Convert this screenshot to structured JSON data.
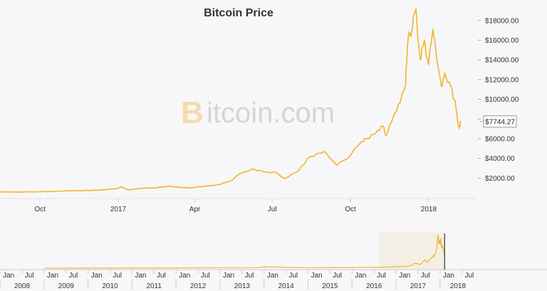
{
  "chart_data": {
    "type": "line",
    "title": "Bitcoin Price",
    "watermark": {
      "prefix": "B",
      "rest": "itcoin.com"
    },
    "series": [
      {
        "color": "#f2b52c",
        "x": [
          "2016-08-15",
          "2016-09-01",
          "2016-09-15",
          "2016-10-01",
          "2016-10-15",
          "2016-11-01",
          "2016-11-15",
          "2016-12-01",
          "2016-12-15",
          "2017-01-01",
          "2017-01-05",
          "2017-01-12",
          "2017-02-01",
          "2017-02-15",
          "2017-03-01",
          "2017-03-10",
          "2017-03-25",
          "2017-04-15",
          "2017-05-01",
          "2017-05-15",
          "2017-05-25",
          "2017-06-10",
          "2017-06-25",
          "2017-07-05",
          "2017-07-16",
          "2017-08-01",
          "2017-08-15",
          "2017-09-01",
          "2017-09-15",
          "2017-10-01",
          "2017-10-12",
          "2017-10-20",
          "2017-11-01",
          "2017-11-08",
          "2017-11-12",
          "2017-11-20",
          "2017-11-28",
          "2017-12-05",
          "2017-12-08",
          "2017-12-12",
          "2017-12-17",
          "2017-12-22",
          "2017-12-27",
          "2018-01-01",
          "2018-01-06",
          "2018-01-10",
          "2018-01-16",
          "2018-01-20",
          "2018-01-27",
          "2018-02-01",
          "2018-02-06",
          "2018-02-08"
        ],
        "y": [
          600,
          580,
          610,
          610,
          640,
          700,
          720,
          760,
          800,
          970,
          1130,
          810,
          1000,
          1000,
          1180,
          1100,
          1000,
          1200,
          1350,
          1800,
          2500,
          2900,
          2600,
          2600,
          1950,
          2750,
          4200,
          4700,
          3300,
          4300,
          5500,
          6000,
          6700,
          7300,
          6300,
          8100,
          9600,
          11500,
          16300,
          16900,
          19200,
          14000,
          16000,
          13500,
          17100,
          14500,
          11300,
          12700,
          11300,
          9900,
          7000,
          7744.27
        ],
        "last_label": "$7744.27"
      }
    ],
    "xaxis": {
      "ticks": [
        "Oct",
        "2017",
        "Apr",
        "Jul",
        "Oct",
        "2018"
      ]
    },
    "yaxis": {
      "ylim": [
        0,
        19500
      ],
      "ticks": [
        "$2000.00",
        "$4000.00",
        "$6000.00",
        "$8000.00",
        "$10000.00",
        "$12000.00",
        "$14000.00",
        "$16000.00",
        "$18000.00"
      ],
      "position": "right"
    },
    "navigator": {
      "years": [
        "2008",
        "2009",
        "2010",
        "2011",
        "2012",
        "2013",
        "2014",
        "2015",
        "2016",
        "2017",
        "2018"
      ],
      "month_ticks": [
        "Jan",
        "Jul"
      ],
      "highlight_color": "#f4efe4"
    }
  }
}
